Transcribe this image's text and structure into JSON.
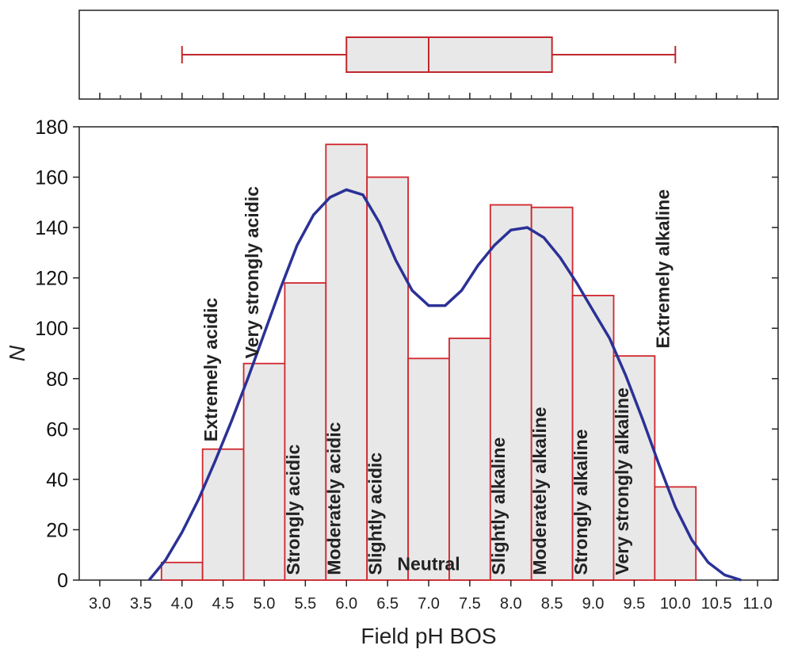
{
  "chart_data": [
    {
      "type": "boxplot",
      "axis": "x",
      "min": 4.0,
      "q1": 6.0,
      "median": 7.0,
      "q3": 8.5,
      "max": 10.0,
      "fill": "#e8e8e8",
      "stroke": "#c0282d"
    },
    {
      "type": "histogram",
      "title": "",
      "xlabel": "Field pH BOS",
      "ylabel": "N",
      "xlim": [
        2.75,
        11.25
      ],
      "ylim": [
        0,
        180
      ],
      "grid": false,
      "bin_width": 0.5,
      "bins": [
        {
          "center": 4.0,
          "value": 7
        },
        {
          "center": 4.5,
          "value": 52
        },
        {
          "center": 5.0,
          "value": 86
        },
        {
          "center": 5.5,
          "value": 118
        },
        {
          "center": 6.0,
          "value": 173
        },
        {
          "center": 6.5,
          "value": 160
        },
        {
          "center": 7.0,
          "value": 88
        },
        {
          "center": 7.5,
          "value": 96
        },
        {
          "center": 8.0,
          "value": 149
        },
        {
          "center": 8.5,
          "value": 148
        },
        {
          "center": 9.0,
          "value": 113
        },
        {
          "center": 9.5,
          "value": 89
        },
        {
          "center": 10.0,
          "value": 37
        }
      ],
      "x_ticks": [
        "3.0",
        "3.5",
        "4.0",
        "4.5",
        "5.0",
        "5.5",
        "6.0",
        "6.5",
        "7.0",
        "7.5",
        "8.0",
        "8.5",
        "9.0",
        "9.5",
        "10.0",
        "10.5",
        "11.0"
      ],
      "y_ticks": [
        "0",
        "20",
        "40",
        "60",
        "80",
        "100",
        "120",
        "140",
        "160",
        "180"
      ],
      "density_curve": {
        "x": [
          3.6,
          3.8,
          4.0,
          4.2,
          4.4,
          4.6,
          4.8,
          5.0,
          5.2,
          5.4,
          5.6,
          5.8,
          6.0,
          6.2,
          6.4,
          6.6,
          6.8,
          7.0,
          7.2,
          7.4,
          7.6,
          7.8,
          8.0,
          8.2,
          8.4,
          8.6,
          8.8,
          9.0,
          9.2,
          9.4,
          9.6,
          9.8,
          10.0,
          10.2,
          10.4,
          10.6,
          10.8
        ],
        "y": [
          0,
          8,
          19,
          32,
          47,
          63,
          80,
          98,
          116,
          133,
          145,
          152,
          155,
          153,
          142,
          127,
          115,
          109,
          109,
          115,
          125,
          133,
          139,
          140,
          136,
          128,
          118,
          107,
          96,
          81,
          64,
          46,
          29,
          16,
          7,
          2,
          0
        ],
        "color": "#2b3196"
      },
      "bar_fill": "#e8e8e8",
      "bar_stroke": "#d0262d",
      "class_labels": [
        {
          "text": "Extremely acidic",
          "x": 4.35,
          "y": 55
        },
        {
          "text": "Very strongly acidic",
          "x": 4.85,
          "y": 88
        },
        {
          "text": "Strongly acidic",
          "x": 5.35,
          "y": 2
        },
        {
          "text": "Moderately acidic",
          "x": 5.85,
          "y": 2
        },
        {
          "text": "Slightly acidic",
          "x": 6.35,
          "y": 2
        },
        {
          "text": "Neutral",
          "x": 7.0,
          "y": 2,
          "horizontal": true
        },
        {
          "text": "Slightly alkaline",
          "x": 7.85,
          "y": 2
        },
        {
          "text": "Moderately alkaline",
          "x": 8.35,
          "y": 2
        },
        {
          "text": "Strongly alkaline",
          "x": 8.85,
          "y": 2
        },
        {
          "text": "Very strongly alkaline",
          "x": 9.35,
          "y": 2
        },
        {
          "text": "Extremely alkaline",
          "x": 9.85,
          "y": 92
        }
      ]
    }
  ]
}
